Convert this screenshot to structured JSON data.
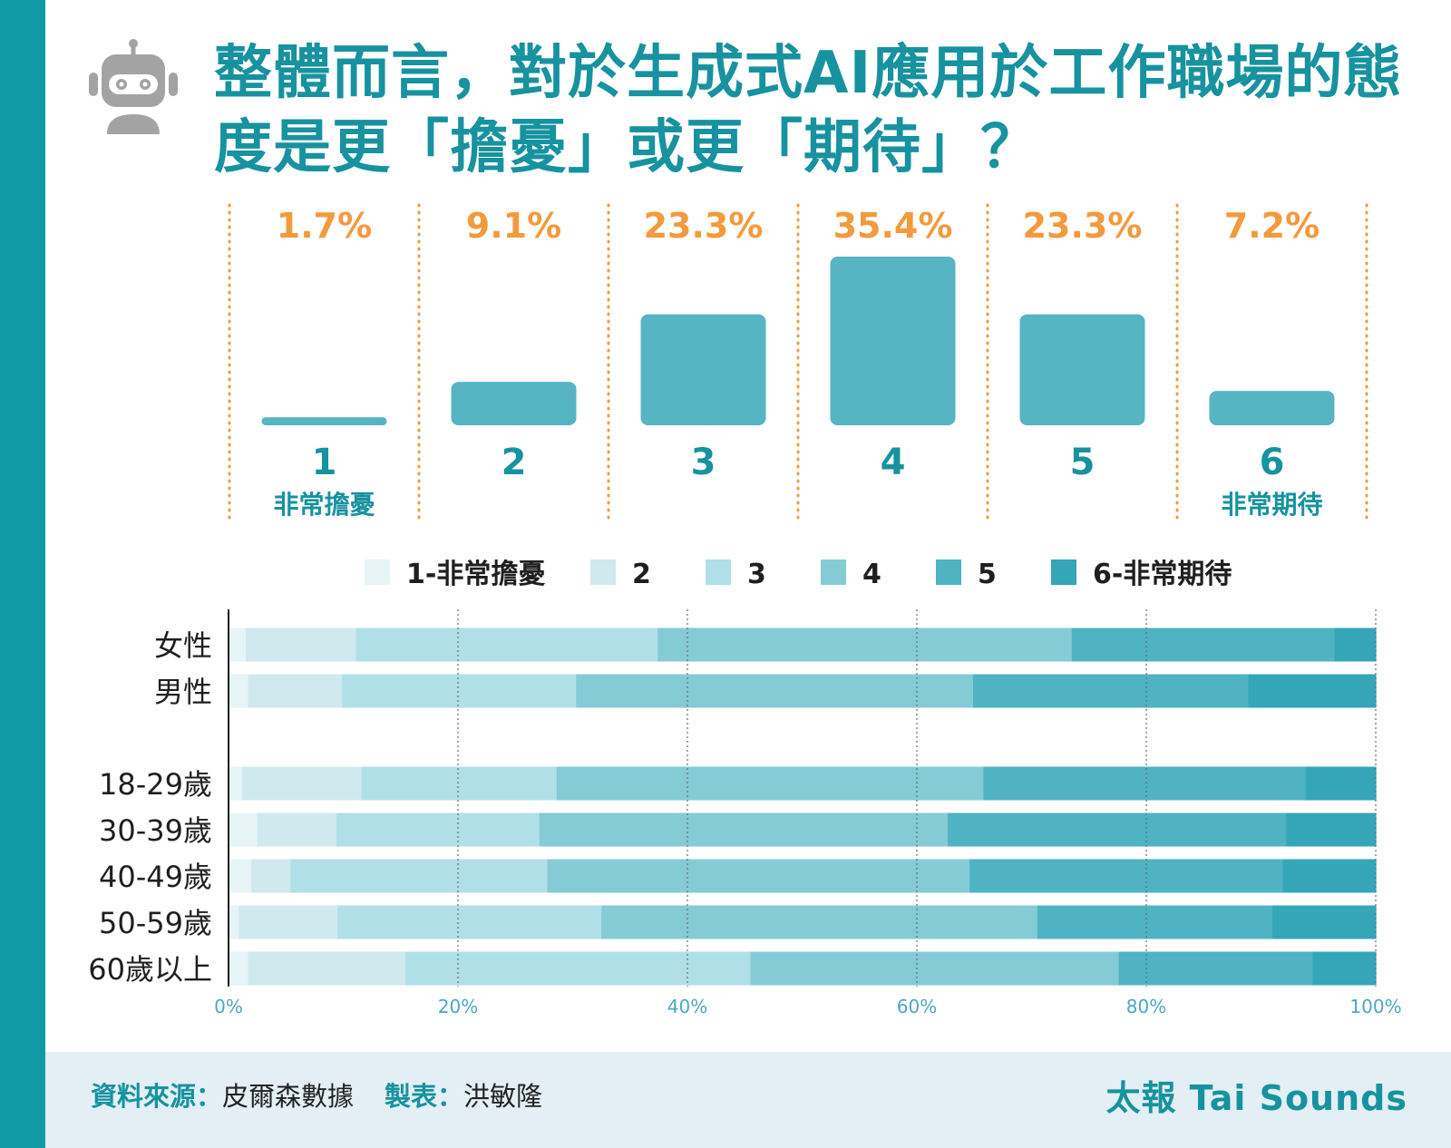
{
  "header": {
    "title": "整體而言，對於生成式AI應用於工作職場的態\n度是更「擔憂」或更「期待」？"
  },
  "colors": {
    "accent": "#17929f",
    "side_bar": "#0f9aa6",
    "percent_text": "#f39a3c",
    "overall_bar": "#57b4c2",
    "scale": [
      "#e6f4f7",
      "#cfe9ef",
      "#b1dfe8",
      "#84cbd6",
      "#4fb3c3",
      "#35a5b8"
    ]
  },
  "chart_data": [
    {
      "type": "bar",
      "categories": [
        "1",
        "2",
        "3",
        "4",
        "5",
        "6"
      ],
      "category_sublabels": [
        "非常擔憂",
        "",
        "",
        "",
        "",
        "非常期待"
      ],
      "values": [
        1.7,
        9.1,
        23.3,
        35.4,
        23.3,
        7.2
      ],
      "value_labels": [
        "1.7%",
        "9.1%",
        "23.3%",
        "35.4%",
        "23.3%",
        "7.2%"
      ],
      "unit": "%"
    },
    {
      "type": "bar",
      "orientation": "horizontal",
      "stacked": true,
      "categories": [
        "女性",
        "男性",
        "18-29歲",
        "30-39歲",
        "40-49歲",
        "50-59歲",
        "60歲以上"
      ],
      "series": [
        {
          "name": "1-非常擔憂",
          "values": [
            1.5,
            1.7,
            1.2,
            2.5,
            2.0,
            0.9,
            1.7
          ]
        },
        {
          "name": "2",
          "values": [
            9.6,
            8.2,
            10.4,
            6.9,
            3.4,
            8.6,
            13.7
          ]
        },
        {
          "name": "3",
          "values": [
            26.3,
            20.4,
            17.0,
            17.7,
            22.4,
            23.0,
            30.1
          ]
        },
        {
          "name": "4",
          "values": [
            36.1,
            34.6,
            37.2,
            35.6,
            36.8,
            38.0,
            32.1
          ]
        },
        {
          "name": "5",
          "values": [
            22.9,
            24.0,
            28.1,
            29.5,
            27.3,
            20.5,
            16.9
          ]
        },
        {
          "name": "6-非常期待",
          "values": [
            3.6,
            11.1,
            6.1,
            7.8,
            8.1,
            9.0,
            5.5
          ]
        }
      ],
      "x_ticks": [
        "0%",
        "20%",
        "40%",
        "60%",
        "80%",
        "100%"
      ],
      "xlim": [
        0,
        100
      ],
      "legend_position": "top",
      "grid": "vertical dotted"
    }
  ],
  "footer": {
    "source_key": "資料來源：",
    "source_value": "皮爾森數據",
    "maker_key": "製表：",
    "maker_value": "洪敏隆",
    "brand": "太報 Tai Sounds"
  }
}
